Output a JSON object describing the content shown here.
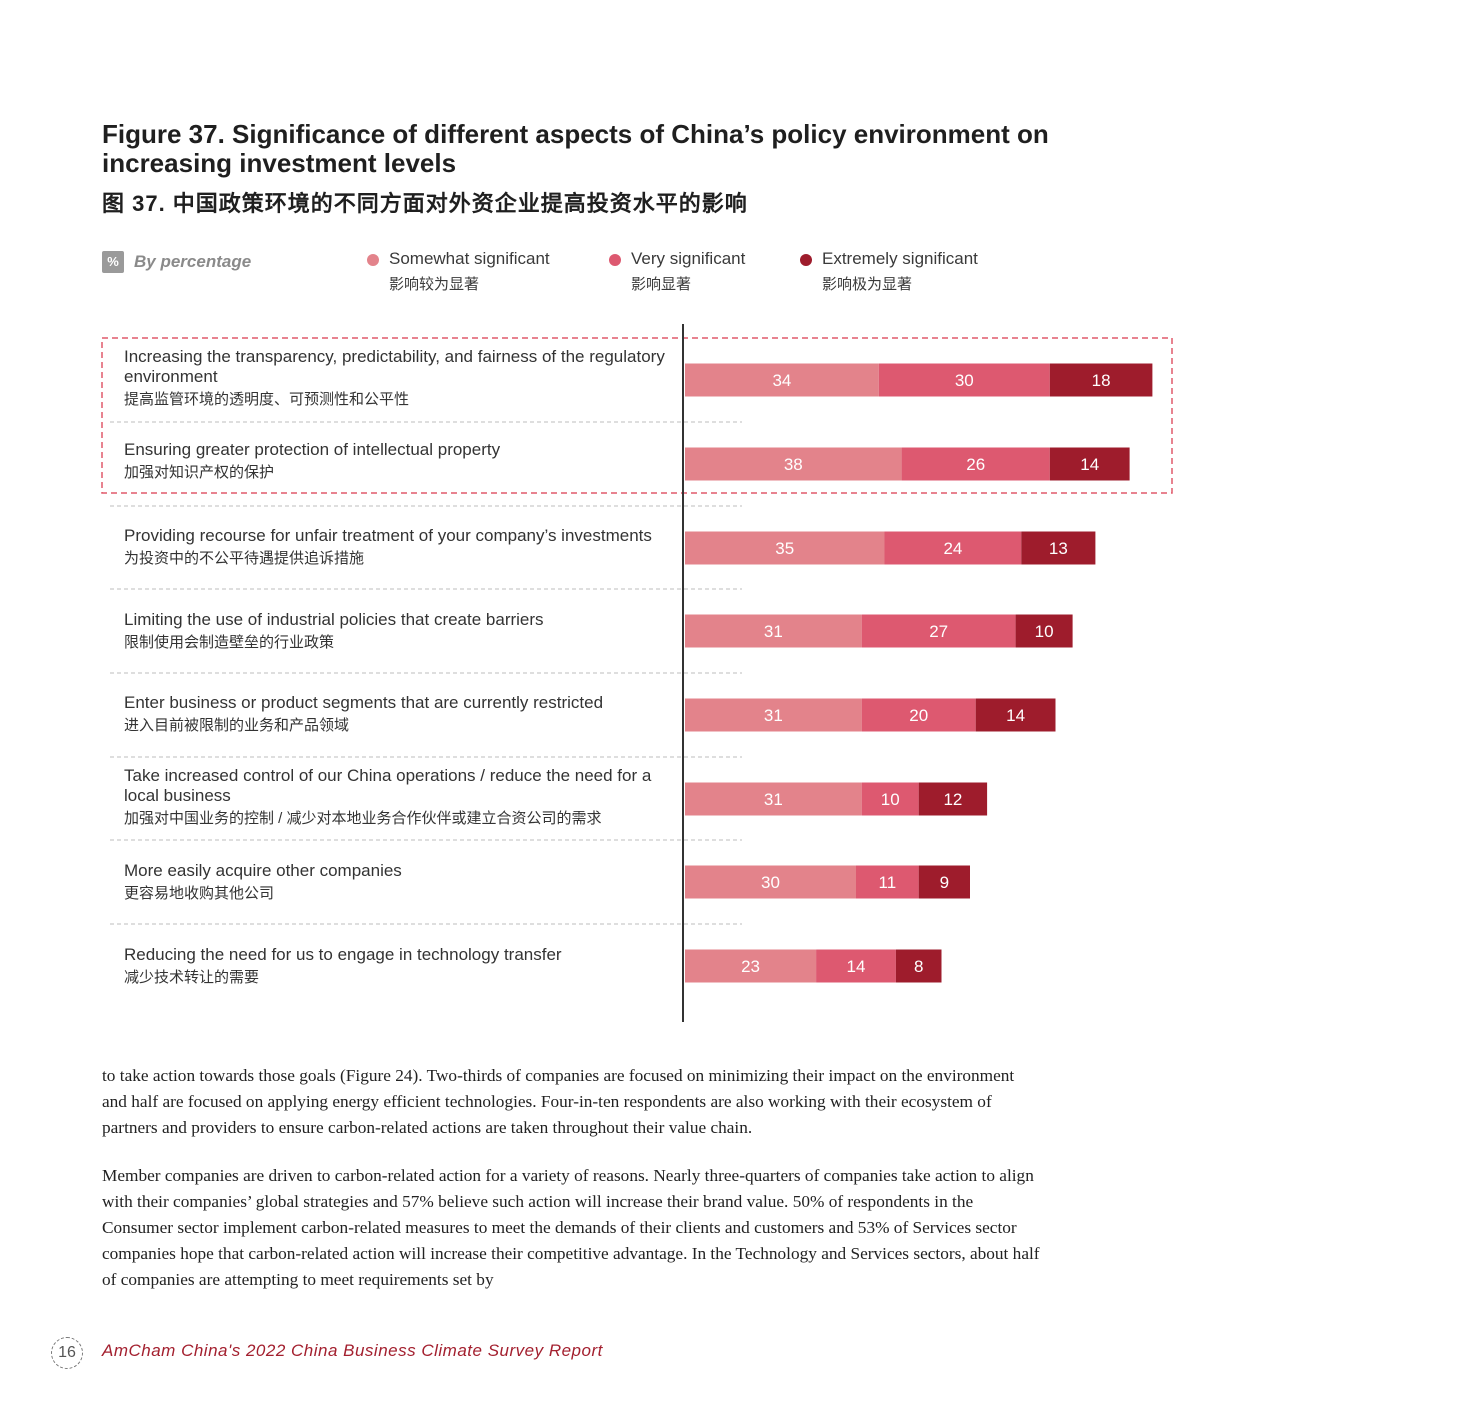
{
  "figure": {
    "title": "Figure 37. Significance of different aspects of China’s policy environment on increasing investment levels",
    "title_cn": "图 37. 中国政策环境的不同方面对外资企业提高投资水平的影响",
    "unit_badge": "%",
    "unit_label": "By percentage"
  },
  "legend": [
    {
      "en": "Somewhat significant",
      "cn": "影响较为显著",
      "color": "#e3838b"
    },
    {
      "en": "Very significant",
      "cn": "影响显著",
      "color": "#dd5970"
    },
    {
      "en": "Extremely significant",
      "cn": "影响极为显著",
      "color": "#9e1c2c"
    }
  ],
  "chart_data": {
    "type": "bar",
    "orientation": "horizontal",
    "stacked": true,
    "unit": "%",
    "highlighted_categories": [
      0,
      1
    ],
    "categories": [
      {
        "en": "Increasing the transparency, predictability, and fairness of the regulatory environment",
        "cn": "提高监管环境的透明度、可预测性和公平性"
      },
      {
        "en": "Ensuring greater protection of intellectual property",
        "cn": "加强对知识产权的保护"
      },
      {
        "en": "Providing recourse for unfair treatment of your company’s investments",
        "cn": "为投资中的不公平待遇提供追诉措施"
      },
      {
        "en": "Limiting the use of industrial policies that create barriers",
        "cn": "限制使用会制造壁垒的行业政策"
      },
      {
        "en": "Enter business or product segments that are currently restricted",
        "cn": "进入目前被限制的业务和产品领域"
      },
      {
        "en": "Take increased control of our China operations / reduce the need for a local business",
        "cn": "加强对中国业务的控制 / 减少对本地业务合作伙伴或建立合资公司的需求"
      },
      {
        "en": "More easily acquire other companies",
        "cn": "更容易地收购其他公司"
      },
      {
        "en": "Reducing the need for us to engage in technology transfer",
        "cn": "减少技术转让的需要"
      }
    ],
    "series": [
      {
        "name": "Somewhat significant",
        "color": "#e3838b",
        "values": [
          34,
          38,
          35,
          31,
          31,
          31,
          30,
          23
        ]
      },
      {
        "name": "Very significant",
        "color": "#dd5970",
        "values": [
          30,
          26,
          24,
          27,
          20,
          10,
          11,
          14
        ]
      },
      {
        "name": "Extremely significant",
        "color": "#9e1c2c",
        "values": [
          18,
          14,
          13,
          10,
          14,
          12,
          9,
          8
        ]
      }
    ]
  },
  "body": {
    "para1": "to take action towards those goals (Figure 24). Two-thirds of companies are focused on minimizing their impact on the environment and half are focused on applying energy efficient technologies. Four-in-ten respondents are also working with their ecosystem of partners and providers to ensure carbon-related actions are taken throughout their value chain.",
    "para2": "Member companies are driven to carbon-related action for a variety of reasons. Nearly three-quarters of companies take action to align with their companies’ global strategies and 57% believe such action will increase their brand value. 50% of respondents in the Consumer sector implement carbon-related measures to meet the demands of their clients and customers and 53% of Services sector companies hope that carbon-related action will increase their competitive advantage. In the Technology and Services sectors, about half of companies are attempting to meet requirements set by"
  },
  "footer": {
    "page_number": "16",
    "report_title": "AmCham China's 2022 China Business Climate Survey Report"
  }
}
